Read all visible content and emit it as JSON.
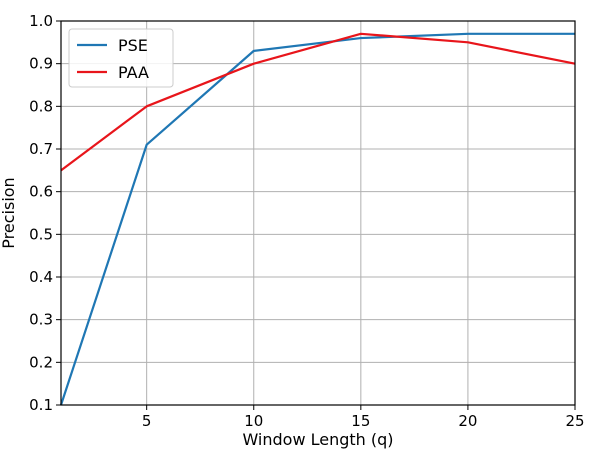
{
  "chart_data": {
    "type": "line",
    "x": [
      1,
      5,
      10,
      15,
      20,
      25
    ],
    "series": [
      {
        "name": "PSE",
        "color": "#1f77b4",
        "values": [
          0.1,
          0.71,
          0.93,
          0.96,
          0.97,
          0.97
        ]
      },
      {
        "name": "PAA",
        "color": "#e8151b",
        "values": [
          0.65,
          0.8,
          0.9,
          0.97,
          0.95,
          0.9
        ]
      }
    ],
    "xlabel": "Window Length (q)",
    "ylabel": "Precision",
    "xlim": [
      1,
      25
    ],
    "ylim": [
      0.1,
      1.0
    ],
    "xticks": [
      5,
      10,
      15,
      20,
      25
    ],
    "xtick_labels": [
      "5",
      "10",
      "15",
      "20",
      "25"
    ],
    "yticks": [
      0.1,
      0.2,
      0.3,
      0.4,
      0.5,
      0.6,
      0.7,
      0.8,
      0.9,
      1.0
    ],
    "ytick_labels": [
      "0.1",
      "0.2",
      "0.3",
      "0.4",
      "0.5",
      "0.6",
      "0.7",
      "0.8",
      "0.9",
      "1.0"
    ],
    "grid": true,
    "legend_position": "top-left"
  }
}
